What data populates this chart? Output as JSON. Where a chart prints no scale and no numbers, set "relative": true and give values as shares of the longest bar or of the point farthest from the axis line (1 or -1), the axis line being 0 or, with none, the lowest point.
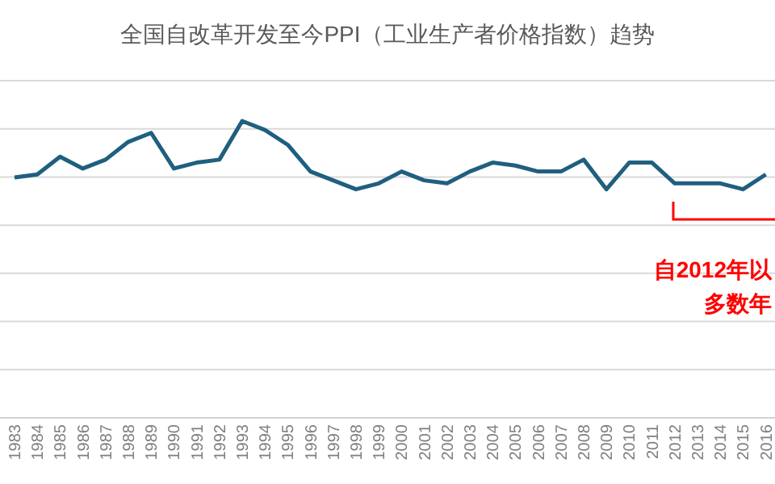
{
  "chart_data": {
    "type": "line",
    "title": "全国自改革开发至今PPI（工业生产者价格指数）趋势",
    "categories": [
      "1983",
      "1984",
      "1985",
      "1986",
      "1987",
      "1988",
      "1989",
      "1990",
      "1991",
      "1992",
      "1993",
      "1994",
      "1995",
      "1996",
      "1997",
      "1998",
      "1999",
      "2000",
      "2001",
      "2002",
      "2003",
      "2004",
      "2005",
      "2006",
      "2007",
      "2008",
      "2009",
      "2010",
      "2011",
      "2012",
      "2013",
      "2014",
      "2015",
      "2016"
    ],
    "series": [
      {
        "color": "#1f5f7f",
        "values": [
          0.81,
          0.82,
          0.88,
          0.84,
          0.87,
          0.93,
          0.96,
          0.84,
          0.86,
          0.87,
          1,
          0.97,
          0.92,
          0.83,
          0.8,
          0.77,
          0.79,
          0.83,
          0.8,
          0.79,
          0.83,
          0.86,
          0.85,
          0.83,
          0.83,
          0.87,
          0.77,
          0.86,
          0.86,
          0.79,
          0.79,
          0.79,
          0.77,
          0.82
        ]
      }
    ],
    "relative": true,
    "grid": true,
    "marker": "none",
    "line_style": "solid",
    "annotations": [
      "自2012年以",
      "多数年"
    ]
  }
}
